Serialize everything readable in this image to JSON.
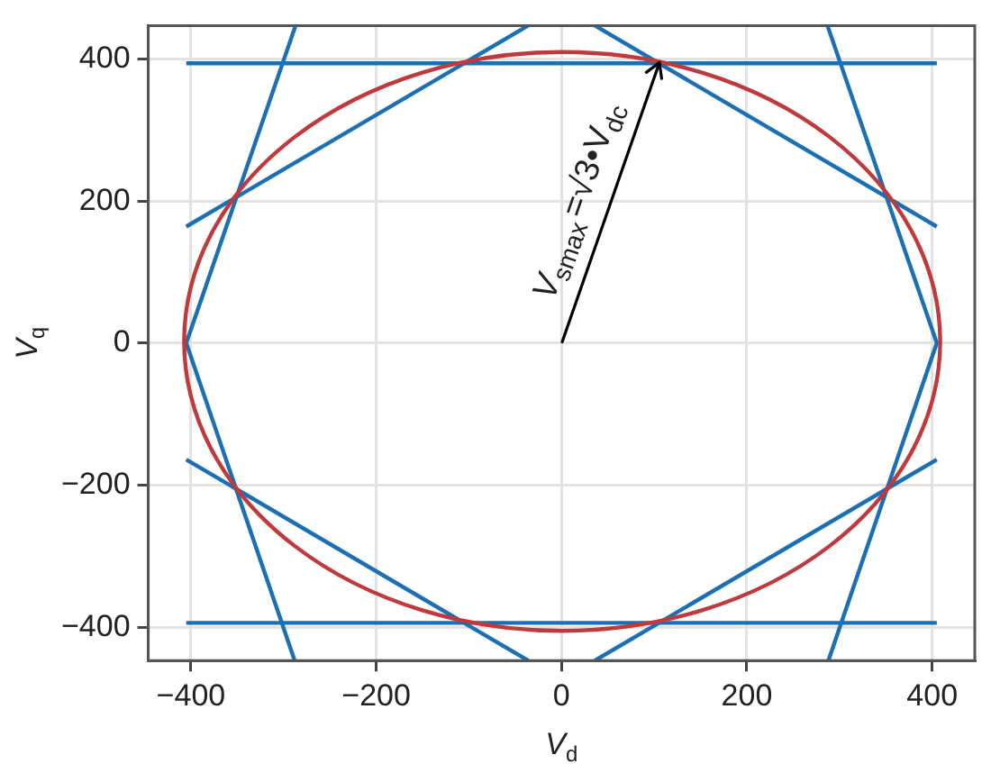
{
  "chart_data": {
    "type": "line",
    "xlabel": "V$_{d}$",
    "ylabel": "V$_{q}$",
    "xlim": [
      -446,
      446
    ],
    "ylim": [
      -447,
      447
    ],
    "xticks": [
      {
        "value": -400,
        "label": "−400"
      },
      {
        "value": -200,
        "label": "−200"
      },
      0,
      200,
      400
    ],
    "yticks": [
      {
        "value": -400,
        "label": "−400"
      },
      {
        "value": -200,
        "label": "−200"
      },
      0,
      200,
      400
    ],
    "grid": true,
    "legend": false,
    "marker": "none",
    "line_style": "solid",
    "annotations": [
      {
        "text": "V$_{smax}$=√3•V$_{dc}$",
        "x": 105,
        "y": 394
      }
    ],
    "series": [
      {
        "color": "#1a6fb5",
        "x": [
          -405,
          405
        ],
        "values": [
          394,
          394
        ]
      },
      {
        "color": "#1a6fb5",
        "x": [
          -405,
          405
        ],
        "values": [
          -394,
          -394
        ]
      },
      {
        "color": "#1a6fb5",
        "x": [
          -405,
          -36
        ],
        "values": [
          164,
          447
        ]
      },
      {
        "color": "#1a6fb5",
        "x": [
          36,
          405
        ],
        "values": [
          447,
          164
        ]
      },
      {
        "color": "#1a6fb5",
        "x": [
          -405,
          -36
        ],
        "values": [
          -164,
          -447
        ]
      },
      {
        "color": "#1a6fb5",
        "x": [
          36,
          405
        ],
        "values": [
          -447,
          -164
        ]
      },
      {
        "color": "#1a6fb5",
        "x": [
          -287,
          -405,
          -288
        ],
        "values": [
          447,
          0,
          -447
        ]
      },
      {
        "color": "#1a6fb5",
        "x": [
          287,
          405,
          288
        ],
        "values": [
          447,
          0,
          -447
        ]
      }
    ]
  }
}
